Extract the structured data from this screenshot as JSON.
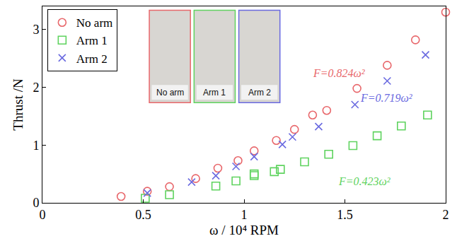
{
  "chart_data": {
    "type": "scatter",
    "x_label": "ω / 10⁴ RPM",
    "y_label": "Thrust /N",
    "xlim": [
      0,
      2
    ],
    "xticks": [
      0,
      0.5,
      1,
      1.5,
      2
    ],
    "ylim": [
      0,
      3.4
    ],
    "yticks": [
      0,
      1,
      2,
      3
    ],
    "legend": "upper left",
    "series": [
      {
        "name": "No arm",
        "color": "#e8676b",
        "marker": "circle-open",
        "x": [
          0.39,
          0.52,
          0.63,
          0.76,
          0.87,
          0.97,
          1.05,
          1.16,
          1.25,
          1.34,
          1.41,
          1.56,
          1.71,
          1.85,
          2.0
        ],
        "values": [
          0.11,
          0.2,
          0.28,
          0.42,
          0.6,
          0.73,
          0.9,
          1.08,
          1.27,
          1.52,
          1.6,
          1.98,
          2.38,
          2.82,
          3.3
        ]
      },
      {
        "name": "Arm 1",
        "color": "#5fd35f",
        "marker": "square-open",
        "x": [
          0.51,
          0.63,
          0.86,
          0.96,
          1.05,
          1.05,
          1.15,
          1.18,
          1.3,
          1.42,
          1.54,
          1.66,
          1.78,
          1.91
        ],
        "values": [
          0.08,
          0.14,
          0.29,
          0.38,
          0.47,
          0.5,
          0.54,
          0.58,
          0.71,
          0.84,
          0.99,
          1.16,
          1.33,
          1.52
        ]
      },
      {
        "name": "Arm 2",
        "color": "#6a6ae0",
        "marker": "x-thin-open",
        "x": [
          0.52,
          0.74,
          0.86,
          0.96,
          1.05,
          1.19,
          1.24,
          1.37,
          1.55,
          1.71,
          1.9
        ],
        "values": [
          0.17,
          0.36,
          0.47,
          0.63,
          0.8,
          1.01,
          1.14,
          1.32,
          1.7,
          2.11,
          2.56
        ]
      }
    ],
    "annotations": [
      {
        "text": "F=0.824ω²",
        "color": "#e8676b",
        "x": 1.61,
        "y": 2.24,
        "anchor": "right"
      },
      {
        "text": "F=0.719ω²",
        "color": "#6a6ae0",
        "x": 1.57,
        "y": 1.82,
        "anchor": "left"
      },
      {
        "text": "F=0.423ω²",
        "color": "#5fd35f",
        "x": 1.46,
        "y": 0.37,
        "anchor": "left"
      }
    ],
    "insets": [
      "No arm",
      "Arm 1",
      "Arm 2"
    ]
  }
}
